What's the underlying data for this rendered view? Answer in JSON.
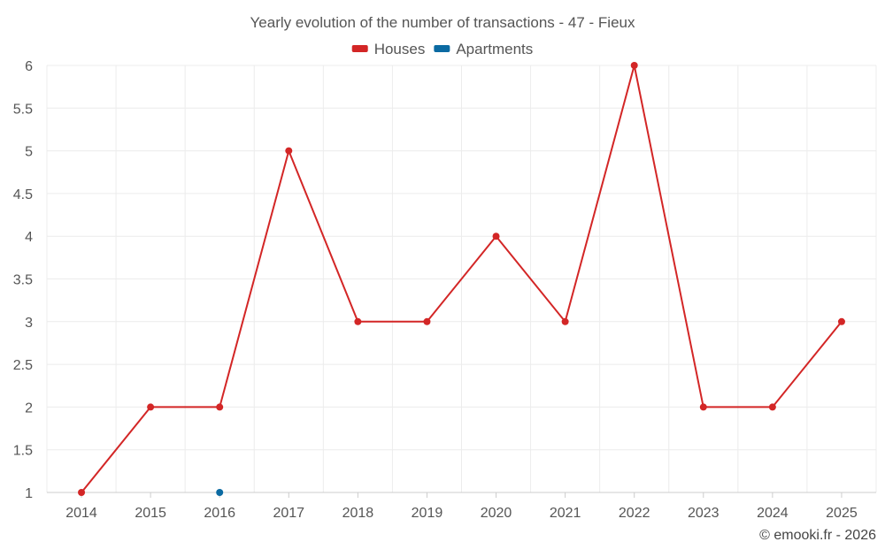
{
  "chart_data": {
    "type": "line",
    "title": "Yearly evolution of the number of transactions - 47 - Fieux",
    "categories": [
      "2014",
      "2015",
      "2016",
      "2017",
      "2018",
      "2019",
      "2020",
      "2021",
      "2022",
      "2023",
      "2024",
      "2025"
    ],
    "series": [
      {
        "name": "Houses",
        "color": "#d32626",
        "values": [
          1,
          2,
          2,
          5,
          3,
          3,
          4,
          3,
          6,
          2,
          2,
          3
        ]
      },
      {
        "name": "Apartments",
        "color": "#0b6aa2",
        "values": [
          null,
          null,
          1,
          null,
          null,
          null,
          null,
          null,
          null,
          null,
          null,
          null
        ]
      }
    ],
    "ylim": [
      1,
      6
    ],
    "yticks": [
      1,
      1.5,
      2,
      2.5,
      3,
      3.5,
      4,
      4.5,
      5,
      5.5,
      6
    ],
    "grid": true,
    "legend": "top-center",
    "xlabel": "",
    "ylabel": ""
  },
  "credit": "© emooki.fr - 2026"
}
